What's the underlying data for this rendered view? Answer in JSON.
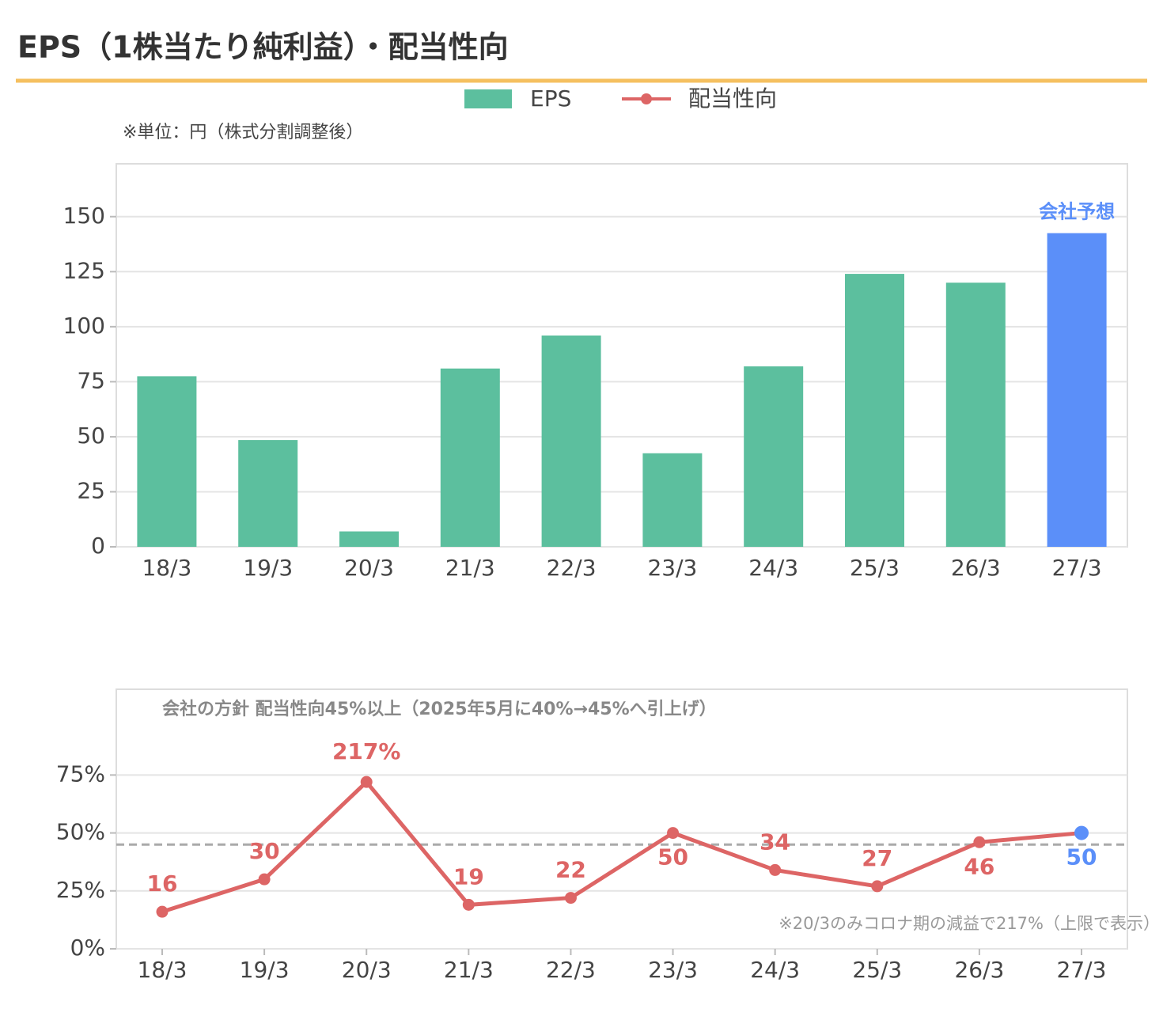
{
  "title": "EPS（1株当たり純利益）・配当性向",
  "chart_data": [
    {
      "type": "bar",
      "subtitle": "※単位：円（株式分割調整後）",
      "categories": [
        "18/3",
        "19/3",
        "20/3",
        "21/3",
        "22/3",
        "23/3",
        "24/3",
        "25/3",
        "26/3",
        "27/3"
      ],
      "series": [
        {
          "name": "EPS",
          "color": "#5cbf9e",
          "values": [
            77.5,
            48.5,
            7,
            81,
            96,
            42.5,
            82,
            124,
            120,
            142.5
          ],
          "colors": [
            "#5cbf9e",
            "#5cbf9e",
            "#5cbf9e",
            "#5cbf9e",
            "#5cbf9e",
            "#5cbf9e",
            "#5cbf9e",
            "#5cbf9e",
            "#5cbf9e",
            "#5b8ff9"
          ]
        }
      ],
      "annotation": {
        "text": "会社予想",
        "index": 9,
        "color": "#5b8ff9"
      },
      "ylim": [
        0,
        174
      ],
      "yticks": [
        0,
        25,
        50,
        75,
        100,
        125,
        150
      ],
      "grid": true
    },
    {
      "type": "line",
      "annotation": "会社の方針 配当性向45%以上（2025年5月に40%→45%へ引上げ）",
      "note": "※20/3のみコロナ期の減益で217%（上限で表示）",
      "categories": [
        "18/3",
        "19/3",
        "20/3",
        "21/3",
        "22/3",
        "23/3",
        "24/3",
        "25/3",
        "26/3",
        "27/3"
      ],
      "series": [
        {
          "name": "配当性向",
          "color": "#dd6565",
          "values": [
            16,
            30,
            217,
            19,
            22,
            50,
            34,
            27,
            46,
            50
          ],
          "value_labels": [
            "16",
            "30",
            "217%",
            "19",
            "22",
            "50",
            "34",
            "27",
            "46",
            "50"
          ],
          "point_colors": [
            "#dd6565",
            "#dd6565",
            "#dd6565",
            "#dd6565",
            "#dd6565",
            "#dd6565",
            "#dd6565",
            "#dd6565",
            "#dd6565",
            "#5b8ff9"
          ]
        }
      ],
      "display_cap": 72,
      "reference_line": 45,
      "ylim": [
        0,
        112
      ],
      "yticks": [
        {
          "value": 0,
          "label": "0%"
        },
        {
          "value": 25,
          "label": "25%"
        },
        {
          "value": 50,
          "label": "50%"
        },
        {
          "value": 75,
          "label": "75%"
        }
      ],
      "grid": true
    }
  ]
}
